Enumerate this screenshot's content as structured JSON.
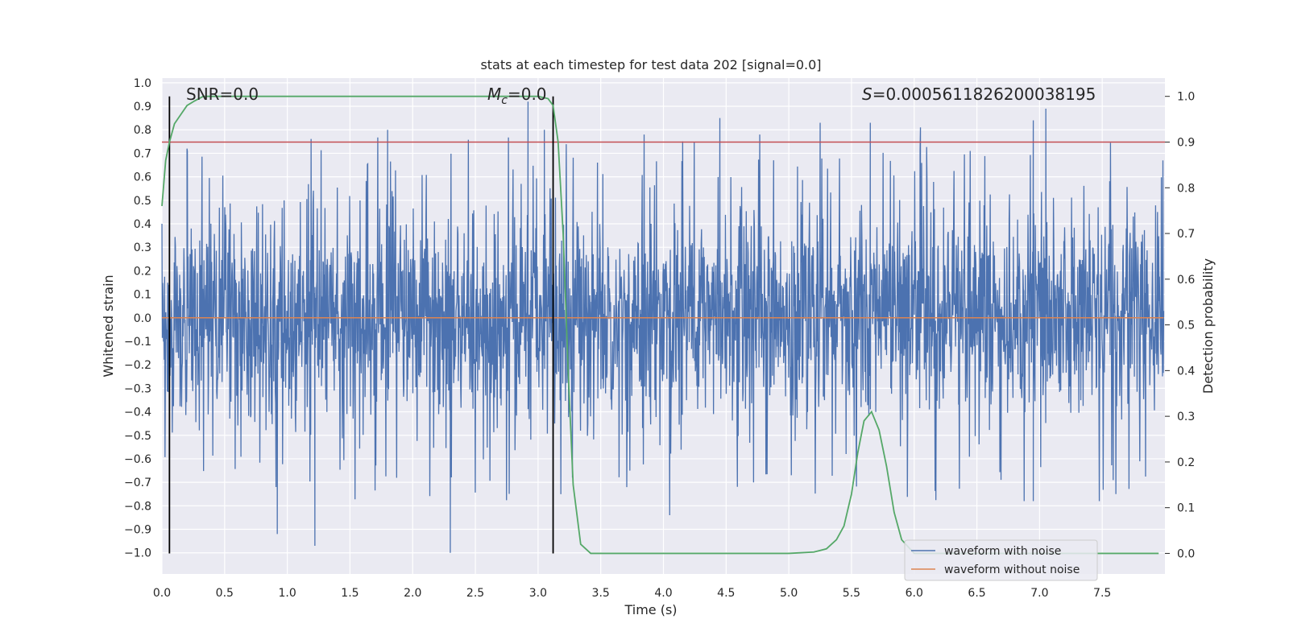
{
  "chart_data": {
    "type": "line",
    "title": "stats at each timestep for test data 202 [signal=0.0]",
    "xlabel": "Time (s)",
    "ylabel": "Whitened strain",
    "y2label": "Detection probability",
    "xlim": [
      0.0,
      8.0
    ],
    "ylim": [
      -1.09,
      1.02
    ],
    "y2lim": [
      -0.045,
      1.04
    ],
    "xticks": [
      "0.0",
      "0.5",
      "1.0",
      "1.5",
      "2.0",
      "2.5",
      "3.0",
      "3.5",
      "4.0",
      "4.5",
      "5.0",
      "5.5",
      "6.0",
      "6.5",
      "7.0",
      "7.5"
    ],
    "yticks": [
      "1.0",
      "0.9",
      "0.8",
      "0.7",
      "0.6",
      "0.5",
      "0.4",
      "0.3",
      "0.2",
      "0.1",
      "0.0",
      "−0.1",
      "−0.2",
      "−0.3",
      "−0.4",
      "−0.5",
      "−0.6",
      "−0.7",
      "−0.8",
      "−0.9",
      "−1.0"
    ],
    "y2ticks": [
      "1.0",
      "0.9",
      "0.8",
      "0.7",
      "0.6",
      "0.5",
      "0.4",
      "0.3",
      "0.2",
      "0.1",
      "0.0"
    ],
    "annotations": {
      "snr": "SNR=0.0",
      "mc_symbol": "M",
      "mc_sub": "c",
      "mc_value": "=0.0",
      "s_symbol": "S",
      "s_value": "=0.0005611826200038195"
    },
    "threshold": {
      "value": 0.9,
      "axis": "right"
    },
    "vlines": [
      0.06,
      3.12
    ],
    "noise_envelope": {
      "typical_abs": 0.4,
      "max_abs": 1.0
    },
    "noise_spikes": [
      [
        0.92,
        -0.92
      ],
      [
        1.22,
        -0.97
      ],
      [
        2.3,
        -1.0
      ],
      [
        2.92,
        0.92
      ],
      [
        3.05,
        0.8
      ],
      [
        1.8,
        0.8
      ],
      [
        4.45,
        0.85
      ],
      [
        5.25,
        0.83
      ],
      [
        5.65,
        0.83
      ],
      [
        6.05,
        0.81
      ],
      [
        7.05,
        0.89
      ],
      [
        6.95,
        0.84
      ],
      [
        4.05,
        -0.84
      ],
      [
        6.95,
        -0.78
      ],
      [
        0.2,
        0.72
      ]
    ],
    "series": [
      {
        "name": "waveform with noise",
        "color": "#4c72b0",
        "kind": "noise"
      },
      {
        "name": "waveform without noise",
        "color": "#dd8452",
        "x": [
          0.0,
          8.0
        ],
        "y": [
          0.0,
          0.0
        ]
      },
      {
        "name": "detection probability",
        "color": "#55a868",
        "axis": "right",
        "x": [
          0.0,
          0.03,
          0.06,
          0.1,
          0.15,
          0.2,
          0.26,
          0.33,
          0.45,
          0.6,
          1.0,
          2.0,
          2.8,
          3.0,
          3.08,
          3.12,
          3.16,
          3.2,
          3.24,
          3.28,
          3.34,
          3.42,
          3.6,
          4.0,
          4.5,
          5.0,
          5.2,
          5.3,
          5.38,
          5.44,
          5.5,
          5.55,
          5.6,
          5.66,
          5.72,
          5.78,
          5.84,
          5.9,
          6.0,
          6.5,
          7.0,
          7.5,
          7.95
        ],
        "y": [
          0.76,
          0.86,
          0.9,
          0.94,
          0.96,
          0.98,
          0.99,
          1.0,
          1.0,
          1.0,
          1.0,
          1.0,
          1.0,
          1.0,
          0.995,
          0.98,
          0.9,
          0.7,
          0.4,
          0.15,
          0.02,
          0.0,
          0.0,
          0.0,
          0.0,
          0.0,
          0.003,
          0.01,
          0.03,
          0.06,
          0.13,
          0.22,
          0.29,
          0.31,
          0.27,
          0.19,
          0.09,
          0.03,
          0.0,
          0.0,
          0.0,
          0.0,
          0.0
        ]
      }
    ],
    "legend": [
      "waveform with noise",
      "waveform without noise"
    ],
    "legend_location": "lower-right"
  }
}
